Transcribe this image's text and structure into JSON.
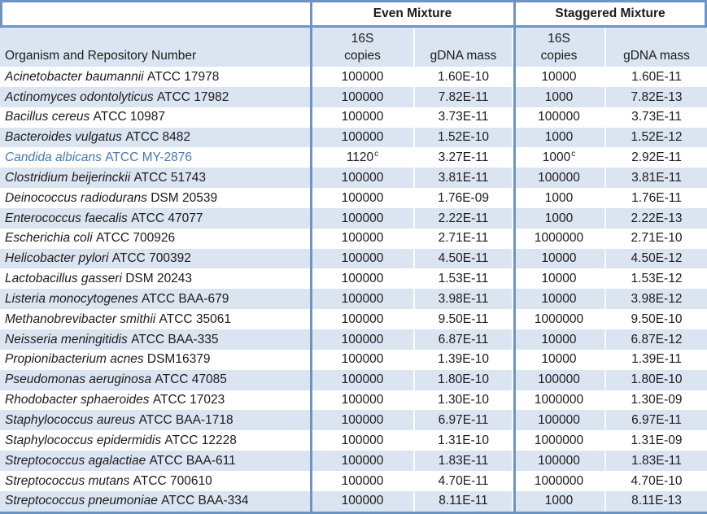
{
  "colors": {
    "border_blue": "#6e94c4",
    "band_blue": "#dbe5f1",
    "highlight_text_blue": "#4678b4",
    "text": "#1c1c1c"
  },
  "header": {
    "group_even": "Even Mixture",
    "group_staggered": "Staggered Mixture",
    "organism_col": "Organism and Repository Number",
    "copies_line1": "16S",
    "copies_line2": "copies",
    "gdna_col": "gDNA mass"
  },
  "rows": [
    {
      "organism_italic": "Acinetobacter baumannii",
      "organism_id": "ATCC 17978",
      "even_copies": "100000",
      "even_copies_sup": "",
      "even_gdna": "1.60E-10",
      "stag_copies": "10000",
      "stag_copies_sup": "",
      "stag_gdna": "1.60E-11",
      "organism_color": "default"
    },
    {
      "organism_italic": "Actinomyces odontolyticus",
      "organism_id": "ATCC 17982",
      "even_copies": "100000",
      "even_copies_sup": "",
      "even_gdna": "7.82E-11",
      "stag_copies": "1000",
      "stag_copies_sup": "",
      "stag_gdna": "7.82E-13",
      "organism_color": "default"
    },
    {
      "organism_italic": "Bacillus cereus",
      "organism_id": "ATCC 10987",
      "even_copies": "100000",
      "even_copies_sup": "",
      "even_gdna": "3.73E-11",
      "stag_copies": "100000",
      "stag_copies_sup": "",
      "stag_gdna": "3.73E-11",
      "organism_color": "default"
    },
    {
      "organism_italic": "Bacteroides vulgatus",
      "organism_id": "ATCC 8482",
      "even_copies": "100000",
      "even_copies_sup": "",
      "even_gdna": "1.52E-10",
      "stag_copies": "1000",
      "stag_copies_sup": "",
      "stag_gdna": "1.52E-12",
      "organism_color": "default"
    },
    {
      "organism_italic": "Candida albicans",
      "organism_id": "ATCC MY-2876",
      "even_copies": "1120",
      "even_copies_sup": "c",
      "even_gdna": "3.27E-11",
      "stag_copies": "1000",
      "stag_copies_sup": "c",
      "stag_gdna": "2.92E-11",
      "organism_color": "blue"
    },
    {
      "organism_italic": "Clostridium beijerinckii",
      "organism_id": "ATCC 51743",
      "even_copies": "100000",
      "even_copies_sup": "",
      "even_gdna": "3.81E-11",
      "stag_copies": "100000",
      "stag_copies_sup": "",
      "stag_gdna": "3.81E-11",
      "organism_color": "default"
    },
    {
      "organism_italic": "Deinococcus radiodurans",
      "organism_id": "DSM 20539",
      "even_copies": "100000",
      "even_copies_sup": "",
      "even_gdna": "1.76E-09",
      "stag_copies": "1000",
      "stag_copies_sup": "",
      "stag_gdna": "1.76E-11",
      "organism_color": "default"
    },
    {
      "organism_italic": "Enterococcus faecalis",
      "organism_id": "ATCC 47077",
      "even_copies": "100000",
      "even_copies_sup": "",
      "even_gdna": "2.22E-11",
      "stag_copies": "1000",
      "stag_copies_sup": "",
      "stag_gdna": "2.22E-13",
      "organism_color": "default"
    },
    {
      "organism_italic": "Escherichia coli",
      "organism_id": "ATCC 700926",
      "even_copies": "100000",
      "even_copies_sup": "",
      "even_gdna": "2.71E-11",
      "stag_copies": "1000000",
      "stag_copies_sup": "",
      "stag_gdna": "2.71E-10",
      "organism_color": "default"
    },
    {
      "organism_italic": "Helicobacter pylori",
      "organism_id": "ATCC 700392",
      "even_copies": "100000",
      "even_copies_sup": "",
      "even_gdna": "4.50E-11",
      "stag_copies": "10000",
      "stag_copies_sup": "",
      "stag_gdna": "4.50E-12",
      "organism_color": "default"
    },
    {
      "organism_italic": "Lactobacillus gasseri",
      "organism_id": "DSM 20243",
      "even_copies": "100000",
      "even_copies_sup": "",
      "even_gdna": "1.53E-11",
      "stag_copies": "10000",
      "stag_copies_sup": "",
      "stag_gdna": "1.53E-12",
      "organism_color": "default"
    },
    {
      "organism_italic": "Listeria monocytogenes",
      "organism_id": "ATCC BAA-679",
      "even_copies": "100000",
      "even_copies_sup": "",
      "even_gdna": "3.98E-11",
      "stag_copies": "10000",
      "stag_copies_sup": "",
      "stag_gdna": "3.98E-12",
      "organism_color": "default"
    },
    {
      "organism_italic": "Methanobrevibacter smithii",
      "organism_id": "ATCC 35061",
      "even_copies": "100000",
      "even_copies_sup": "",
      "even_gdna": "9.50E-11",
      "stag_copies": "1000000",
      "stag_copies_sup": "",
      "stag_gdna": "9.50E-10",
      "organism_color": "default"
    },
    {
      "organism_italic": "Neisseria meningitidis",
      "organism_id": "ATCC BAA-335",
      "even_copies": "100000",
      "even_copies_sup": "",
      "even_gdna": "6.87E-11",
      "stag_copies": "10000",
      "stag_copies_sup": "",
      "stag_gdna": "6.87E-12",
      "organism_color": "default"
    },
    {
      "organism_italic": "Propionibacterium acnes",
      "organism_id": "DSM16379",
      "even_copies": "100000",
      "even_copies_sup": "",
      "even_gdna": "1.39E-10",
      "stag_copies": "10000",
      "stag_copies_sup": "",
      "stag_gdna": "1.39E-11",
      "organism_color": "default"
    },
    {
      "organism_italic": "Pseudomonas aeruginosa",
      "organism_id": "ATCC 47085",
      "even_copies": "100000",
      "even_copies_sup": "",
      "even_gdna": "1.80E-10",
      "stag_copies": "100000",
      "stag_copies_sup": "",
      "stag_gdna": "1.80E-10",
      "organism_color": "default"
    },
    {
      "organism_italic": "Rhodobacter sphaeroides",
      "organism_id": "ATCC 17023",
      "even_copies": "100000",
      "even_copies_sup": "",
      "even_gdna": "1.30E-10",
      "stag_copies": "1000000",
      "stag_copies_sup": "",
      "stag_gdna": "1.30E-09",
      "organism_color": "default"
    },
    {
      "organism_italic": "Staphylococcus aureus",
      "organism_id": "ATCC BAA-1718",
      "even_copies": "100000",
      "even_copies_sup": "",
      "even_gdna": "6.97E-11",
      "stag_copies": "100000",
      "stag_copies_sup": "",
      "stag_gdna": "6.97E-11",
      "organism_color": "default"
    },
    {
      "organism_italic": "Staphylococcus epidermidis",
      "organism_id": "ATCC 12228",
      "even_copies": "100000",
      "even_copies_sup": "",
      "even_gdna": "1.31E-10",
      "stag_copies": "1000000",
      "stag_copies_sup": "",
      "stag_gdna": "1.31E-09",
      "organism_color": "default"
    },
    {
      "organism_italic": "Streptococcus agalactiae",
      "organism_id": "ATCC BAA-611",
      "even_copies": "100000",
      "even_copies_sup": "",
      "even_gdna": "1.83E-11",
      "stag_copies": "100000",
      "stag_copies_sup": "",
      "stag_gdna": "1.83E-11",
      "organism_color": "default"
    },
    {
      "organism_italic": "Streptococcus mutans",
      "organism_id": "ATCC 700610",
      "even_copies": "100000",
      "even_copies_sup": "",
      "even_gdna": "4.70E-11",
      "stag_copies": "1000000",
      "stag_copies_sup": "",
      "stag_gdna": "4.70E-10",
      "organism_color": "default"
    },
    {
      "organism_italic": "Streptococcus pneumoniae",
      "organism_id": "ATCC BAA-334",
      "even_copies": "100000",
      "even_copies_sup": "",
      "even_gdna": "8.11E-11",
      "stag_copies": "1000",
      "stag_copies_sup": "",
      "stag_gdna": "8.11E-13",
      "organism_color": "default"
    }
  ]
}
